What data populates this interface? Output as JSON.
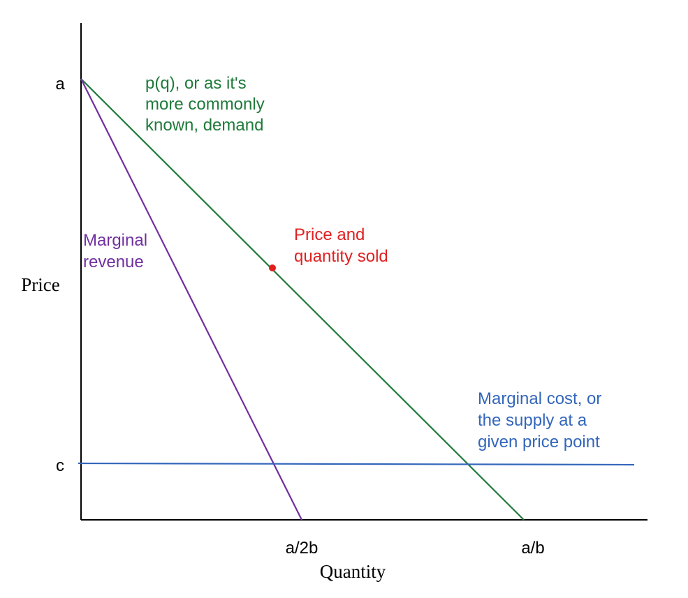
{
  "chart_data": {
    "type": "line",
    "title": "",
    "xlabel": "Quantity",
    "ylabel": "Price",
    "x_ticks": [
      "a/2b",
      "a/b"
    ],
    "y_ticks": [
      "a",
      "c"
    ],
    "series": [
      {
        "name_lines": [
          "p(q), or as it's",
          "more commonly",
          "known, demand"
        ],
        "color": "#1f7a3a",
        "points": [
          [
            0,
            "a"
          ],
          [
            "a/b",
            0
          ]
        ]
      },
      {
        "name_lines": [
          "Marginal",
          "revenue"
        ],
        "color": "#7030a0",
        "points": [
          [
            0,
            "a"
          ],
          [
            "a/2b",
            0
          ]
        ]
      },
      {
        "name_lines": [
          "Marginal cost, or",
          "the supply at a",
          "given price point"
        ],
        "color": "#3366bb",
        "points": [
          [
            0,
            "c"
          ],
          [
            "max",
            "c"
          ]
        ]
      }
    ],
    "annotation": {
      "lines": [
        "Price and",
        "quantity sold"
      ],
      "color": "#e02020",
      "point": [
        "a/2b",
        "on demand"
      ]
    }
  }
}
